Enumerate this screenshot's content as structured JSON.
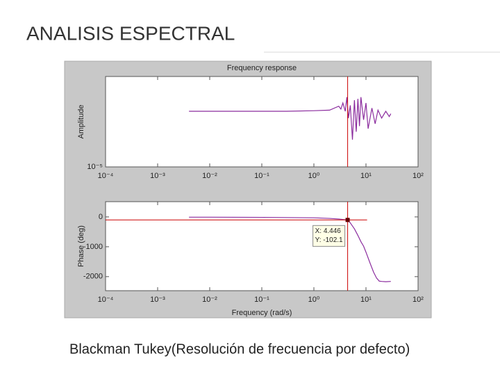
{
  "slide": {
    "title": "ANALISIS ESPECTRAL",
    "caption": "Blackman Tukey(Resolución de frecuencia por defecto)"
  },
  "chart_data": [
    {
      "type": "line",
      "title": "Frequency response",
      "ylabel": "Amplitude",
      "xscale": "log",
      "yscale": "log",
      "xlim": [
        0.0001,
        100
      ],
      "ylim": [
        1e-05,
        0.001
      ],
      "xticks": [
        {
          "value": 0.0001,
          "label": "10⁻⁴"
        },
        {
          "value": 0.001,
          "label": "10⁻³"
        },
        {
          "value": 0.01,
          "label": "10⁻²"
        },
        {
          "value": 0.1,
          "label": "10⁻¹"
        },
        {
          "value": 1,
          "label": "10⁰"
        },
        {
          "value": 10,
          "label": "10¹"
        },
        {
          "value": 100,
          "label": "10²"
        }
      ],
      "yticks": [
        {
          "value": 1e-05,
          "label": "10⁻⁵"
        }
      ],
      "x": [
        0.004,
        0.01,
        0.03,
        0.1,
        0.3,
        1,
        2,
        3,
        3.3,
        3.6,
        4,
        4.3,
        4.6,
        5,
        5.5,
        6,
        6.5,
        7,
        7.5,
        8,
        9,
        10,
        11,
        13,
        15,
        17,
        20,
        24,
        28,
        30
      ],
      "series": [
        {
          "name": "Amplitude",
          "color": "#8b2c9e",
          "values": [
            0.00017,
            0.00017,
            0.00017,
            0.00017,
            0.00017,
            0.000175,
            0.00018,
            0.00022,
            0.00019,
            0.00026,
            0.00017,
            0.00035,
            0.00012,
            0.00023,
            4e-05,
            0.0003,
            6e-05,
            0.00032,
            8e-05,
            0.00035,
            0.00011,
            0.00026,
            7e-05,
            0.0002,
            9e-05,
            0.00018,
            0.00012,
            0.00017,
            0.00013,
            0.00015
          ]
        }
      ],
      "cursor_x": 4.446
    },
    {
      "type": "line",
      "xlabel": "Frequency (rad/s)",
      "ylabel": "Phase (deg)",
      "xscale": "log",
      "xlim": [
        0.0001,
        100
      ],
      "ylim": [
        -2470,
        510
      ],
      "xticks": [
        {
          "value": 0.0001,
          "label": "10⁻⁴"
        },
        {
          "value": 0.001,
          "label": "10⁻³"
        },
        {
          "value": 0.01,
          "label": "10⁻²"
        },
        {
          "value": 0.1,
          "label": "10⁻¹"
        },
        {
          "value": 1,
          "label": "10⁰"
        },
        {
          "value": 10,
          "label": "10¹"
        },
        {
          "value": 100,
          "label": "10²"
        }
      ],
      "yticks": [
        0,
        -1000,
        -2000
      ],
      "x": [
        0.004,
        0.01,
        0.1,
        1,
        2,
        3,
        4,
        4.446,
        5,
        6,
        7,
        8,
        9,
        10,
        12,
        14,
        16,
        18,
        20,
        24,
        30
      ],
      "series": [
        {
          "name": "Phase",
          "color": "#8b2c9e",
          "values": [
            -10,
            -10,
            -15,
            -30,
            -50,
            -70,
            -95,
            -102.1,
            -200,
            -400,
            -620,
            -830,
            -980,
            -1180,
            -1550,
            -1850,
            -2050,
            -2150,
            -2160,
            -2170,
            -2160
          ]
        }
      ],
      "datatip": {
        "x": 4.446,
        "y": -102.1,
        "labels": [
          "X: 4.446",
          "Y: -102.1"
        ]
      }
    }
  ]
}
